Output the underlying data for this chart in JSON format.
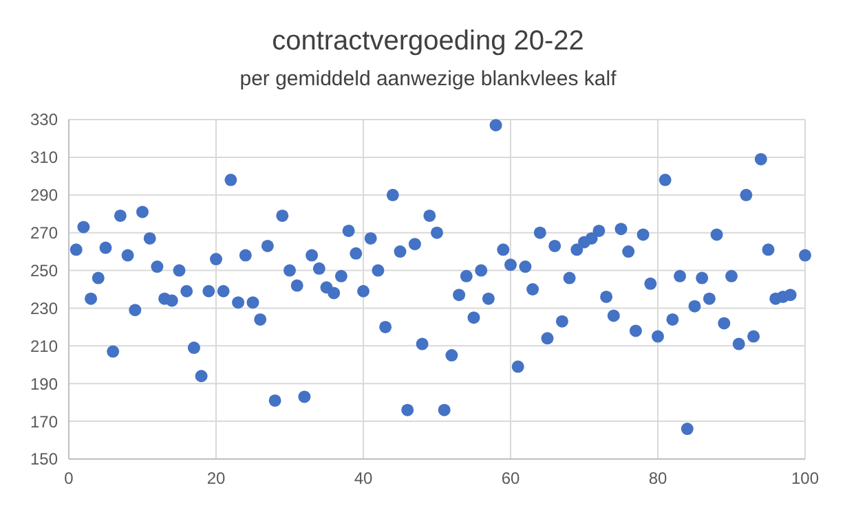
{
  "chart_data": {
    "type": "scatter",
    "title": "contractvergoeding 20-22",
    "subtitle": "per gemiddeld aanwezige blankvlees kalf",
    "x": [
      1,
      2,
      3,
      4,
      5,
      6,
      7,
      8,
      9,
      10,
      11,
      12,
      13,
      14,
      15,
      16,
      17,
      18,
      19,
      20,
      21,
      22,
      23,
      24,
      25,
      26,
      27,
      28,
      29,
      30,
      31,
      32,
      33,
      34,
      35,
      36,
      37,
      38,
      39,
      40,
      41,
      42,
      43,
      44,
      45,
      46,
      47,
      48,
      49,
      50,
      51,
      52,
      53,
      54,
      55,
      56,
      57,
      58,
      59,
      60,
      61,
      62,
      63,
      64,
      65,
      66,
      67,
      68,
      69,
      70,
      71,
      72,
      73,
      74,
      75,
      76,
      77,
      78,
      79,
      80,
      81,
      82,
      83,
      84,
      85,
      86,
      87,
      88,
      89,
      90,
      91,
      92,
      93,
      94,
      95,
      96,
      97,
      98,
      100
    ],
    "series": [
      {
        "color": "#4472c4",
        "values": [
          261,
          273,
          235,
          246,
          262,
          207,
          279,
          258,
          229,
          281,
          267,
          252,
          235,
          234,
          250,
          239,
          209,
          194,
          239,
          256,
          239,
          298,
          233,
          258,
          233,
          224,
          263,
          181,
          279,
          250,
          242,
          183,
          258,
          251,
          241,
          238,
          247,
          271,
          259,
          239,
          267,
          250,
          220,
          290,
          260,
          176,
          264,
          211,
          279,
          270,
          176,
          205,
          237,
          247,
          225,
          250,
          235,
          327,
          261,
          253,
          199,
          252,
          240,
          270,
          214,
          263,
          223,
          246,
          261,
          265,
          267,
          271,
          236,
          226,
          272,
          260,
          218,
          269,
          243,
          215,
          298,
          224,
          247,
          166,
          231,
          246,
          235,
          269,
          222,
          247,
          211,
          290,
          215,
          309,
          261,
          235,
          236,
          237,
          258
        ]
      }
    ],
    "xlim": [
      0,
      100
    ],
    "xticks": [
      0,
      20,
      40,
      60,
      80,
      100
    ],
    "ylim": [
      150,
      330
    ],
    "yticks": [
      150,
      170,
      190,
      210,
      230,
      250,
      270,
      290,
      310,
      330
    ],
    "grid": true,
    "marker": "circle"
  }
}
